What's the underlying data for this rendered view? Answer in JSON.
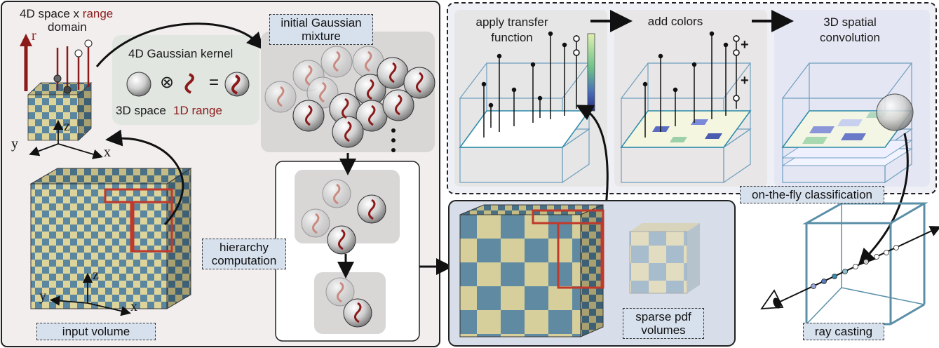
{
  "left_panel": {
    "space_range_title_1": "4D space x",
    "space_range_title_red": "range",
    "space_range_title_2": "domain",
    "r_axis": "r",
    "kernel_title": "4D Gaussian kernel",
    "kernel_op1": "⊗",
    "kernel_op2": "=",
    "kernel_space": "3D space",
    "kernel_range": "1D range",
    "axis_x": "x",
    "axis_y": "y",
    "axis_z": "z",
    "input_volume": "input volume"
  },
  "middle_panel": {
    "initial_mixture": "initial Gaussian\nmixture",
    "hierarchy": "hierarchy\ncomputation"
  },
  "classification_panel": {
    "step1": "apply transfer\nfunction",
    "step2": "add colors",
    "step3": "3D spatial\nconvolution",
    "plus": "+",
    "caption": "on-the-fly classification"
  },
  "bottom_panel": {
    "sparse_pdf": "sparse pdf\nvolumes"
  },
  "ray_casting": {
    "caption": "ray casting"
  },
  "colors": {
    "blue_cell": "#5b86a0",
    "yellow_cell": "#dcd49b",
    "accent_red": "#c0392b",
    "dark_red": "#8b1a1a",
    "panel_dashed_bg": "#eef0f6",
    "tag_bg": "#d7e1ee"
  }
}
